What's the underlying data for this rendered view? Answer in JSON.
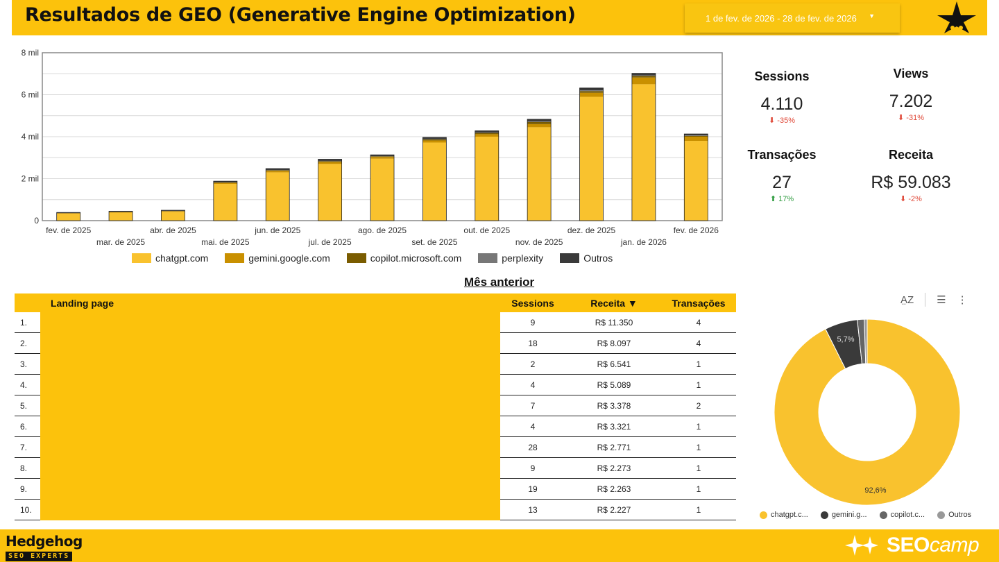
{
  "header": {
    "title": "Resultados de GEO (Generative Engine Optimization)",
    "date_range": "1 de fev. de 2026 - 28 de fev. de 2026"
  },
  "kpis": [
    {
      "label": "Sessions",
      "value": "4.110",
      "delta": "-35%",
      "direction": "down"
    },
    {
      "label": "Views",
      "value": "7.202",
      "delta": "-31%",
      "direction": "down"
    },
    {
      "label": "Transações",
      "value": "27",
      "delta": "17%",
      "direction": "up"
    },
    {
      "label": "Receita",
      "value": "R$ 59.083",
      "delta": "-2%",
      "direction": "down"
    }
  ],
  "colors": {
    "brand_yellow": "#fcc20c",
    "chatgpt": "#f9c22e",
    "gemini": "#c99000",
    "copilot": "#7a5c00",
    "perplexity": "#777777",
    "outros": "#3a3a3a",
    "negative": "#e04a3a",
    "positive": "#2e9b3e"
  },
  "chart_data": [
    {
      "type": "bar",
      "stacked": true,
      "categories": [
        "fev. de 2025",
        "mar. de 2025",
        "abr. de 2025",
        "mai. de 2025",
        "jun. de 2025",
        "jul. de 2025",
        "ago. de 2025",
        "set. de 2025",
        "out. de 2025",
        "nov. de 2025",
        "dez. de 2025",
        "jan. de 2026",
        "fev. de 2026"
      ],
      "series": [
        {
          "name": "chatgpt.com",
          "values": [
            330,
            380,
            420,
            1750,
            2300,
            2700,
            2950,
            3720,
            4000,
            4450,
            5900,
            6500,
            3800
          ]
        },
        {
          "name": "gemini.google.com",
          "values": [
            20,
            25,
            30,
            50,
            70,
            90,
            80,
            100,
            120,
            150,
            190,
            320,
            200
          ]
        },
        {
          "name": "copilot.microsoft.com",
          "values": [
            10,
            10,
            10,
            20,
            30,
            40,
            35,
            50,
            60,
            100,
            80,
            70,
            40
          ]
        },
        {
          "name": "perplexity",
          "values": [
            5,
            5,
            5,
            10,
            10,
            15,
            10,
            15,
            20,
            30,
            40,
            30,
            20
          ]
        },
        {
          "name": "Outros",
          "values": [
            25,
            30,
            30,
            50,
            70,
            80,
            60,
            80,
            80,
            100,
            110,
            100,
            70
          ]
        }
      ],
      "yticks": [
        "0",
        "2 mil",
        "4 mil",
        "6 mil",
        "8 mil"
      ],
      "ylim": [
        0,
        8000
      ],
      "legend_position": "bottom"
    },
    {
      "type": "pie",
      "donut": true,
      "labels": [
        "chatgpt.com",
        "gemini.google.com",
        "copilot.microsoft.com",
        "Outros"
      ],
      "legend_labels": [
        "chatgpt.c...",
        "gemini.g...",
        "copilot.c...",
        "Outros"
      ],
      "values": [
        92.6,
        5.7,
        1.2,
        0.5
      ],
      "slice_labels": [
        "92,6%",
        "5,7%",
        "",
        ""
      ],
      "slice_colors": [
        "#f9c22e",
        "#3a3a3a",
        "#666666",
        "#999999"
      ]
    }
  ],
  "table": {
    "section_title": "Mês anterior",
    "columns": [
      "Landing page",
      "Sessions",
      "Receita ▼",
      "Transações"
    ],
    "rows": [
      {
        "rank": "1.",
        "sessions": "9",
        "receita": "R$ 11.350",
        "transacoes": "4"
      },
      {
        "rank": "2.",
        "sessions": "18",
        "receita": "R$ 8.097",
        "transacoes": "4"
      },
      {
        "rank": "3.",
        "sessions": "2",
        "receita": "R$ 6.541",
        "transacoes": "1"
      },
      {
        "rank": "4.",
        "sessions": "4",
        "receita": "R$ 5.089",
        "transacoes": "1"
      },
      {
        "rank": "5.",
        "sessions": "7",
        "receita": "R$ 3.378",
        "transacoes": "2"
      },
      {
        "rank": "6.",
        "sessions": "4",
        "receita": "R$ 3.321",
        "transacoes": "1"
      },
      {
        "rank": "7.",
        "sessions": "28",
        "receita": "R$ 2.771",
        "transacoes": "1"
      },
      {
        "rank": "8.",
        "sessions": "9",
        "receita": "R$ 2.273",
        "transacoes": "1"
      },
      {
        "rank": "9.",
        "sessions": "19",
        "receita": "R$ 2.263",
        "transacoes": "1"
      },
      {
        "rank": "10.",
        "sessions": "13",
        "receita": "R$ 2.227",
        "transacoes": "1"
      }
    ]
  },
  "donut_tools": {
    "sort_icon": "sort-az-icon",
    "filter_icon": "filter-icon",
    "more_icon": "more-vert-icon"
  },
  "footer": {
    "brand_left_name": "Hedgehog",
    "brand_left_sub": "SEO EXPERTS",
    "brand_right_bold": "SEO",
    "brand_right_italic": "camp"
  }
}
